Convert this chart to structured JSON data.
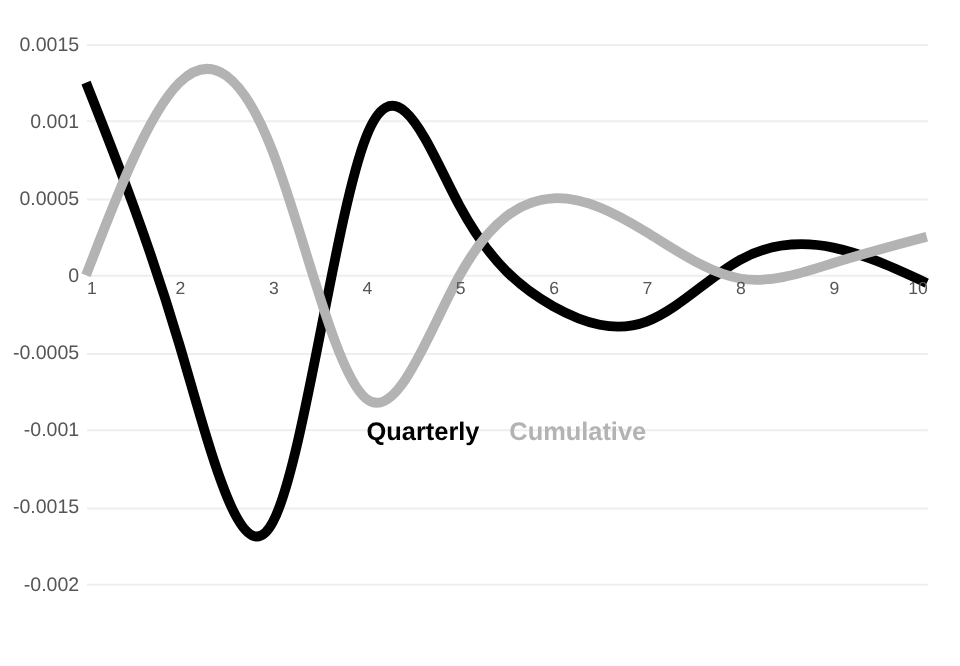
{
  "chart_data": {
    "type": "line",
    "x": [
      1,
      2,
      3,
      4,
      5,
      6,
      7,
      8,
      9,
      10
    ],
    "series": [
      {
        "name": "Quarterly",
        "color": "#000000",
        "values": [
          0.00125,
          -0.00045,
          -0.0016,
          0.0009,
          0.00045,
          -0.0002,
          -0.0003,
          0.0001,
          0.00018,
          -5e-05
        ]
      },
      {
        "name": "Cumulative",
        "color": "#b3b3b3",
        "values": [
          0,
          0.00125,
          0.0008,
          -0.0008,
          0,
          0.0005,
          0.00028,
          -2e-05,
          8e-05,
          0.00025
        ]
      }
    ],
    "xlim": [
      1,
      10
    ],
    "xticks": [
      1,
      2,
      3,
      4,
      5,
      6,
      7,
      8,
      9,
      10
    ],
    "ylim": [
      -0.002,
      0.0015
    ],
    "yticks": [
      -0.002,
      -0.0015,
      -0.001,
      -0.0005,
      0,
      0.0005,
      0.001,
      0.0015
    ],
    "grid": "y",
    "legend": "bottom",
    "marker": "none",
    "line_style": "solid"
  }
}
